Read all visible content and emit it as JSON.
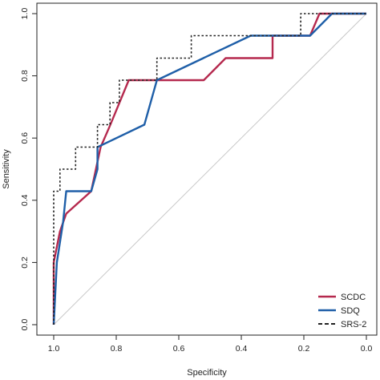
{
  "chart_data": {
    "type": "line",
    "xlabel": "Specificity",
    "ylabel": "Sensitivity",
    "xlim": [
      1.0,
      0.0
    ],
    "ylim": [
      0.0,
      1.0
    ],
    "x_reversed": true,
    "x_ticks": [
      "1.0",
      "0.8",
      "0.6",
      "0.4",
      "0.2",
      "0.0"
    ],
    "x_tick_values": [
      1.0,
      0.8,
      0.6,
      0.4,
      0.2,
      0.0
    ],
    "y_ticks": [
      "0.0",
      "0.2",
      "0.4",
      "0.6",
      "0.8",
      "1.0"
    ],
    "y_tick_values": [
      0.0,
      0.2,
      0.4,
      0.6,
      0.8,
      1.0
    ],
    "grid": false,
    "reference_line": {
      "from": [
        1.0,
        0.0
      ],
      "to": [
        0.0,
        1.0
      ],
      "color": "#c8c8c8"
    },
    "legend_position": "bottom-right",
    "series": [
      {
        "name": "SCDC",
        "color": "#b5294e",
        "style": "solid",
        "points": [
          [
            1.0,
            0.0
          ],
          [
            1.0,
            0.2
          ],
          [
            0.98,
            0.3
          ],
          [
            0.96,
            0.357
          ],
          [
            0.88,
            0.429
          ],
          [
            0.85,
            0.571
          ],
          [
            0.82,
            0.64
          ],
          [
            0.76,
            0.786
          ],
          [
            0.52,
            0.786
          ],
          [
            0.45,
            0.857
          ],
          [
            0.3,
            0.857
          ],
          [
            0.3,
            0.929
          ],
          [
            0.18,
            0.929
          ],
          [
            0.15,
            1.0
          ],
          [
            0.0,
            1.0
          ]
        ]
      },
      {
        "name": "SDQ",
        "color": "#1f5fa8",
        "style": "solid",
        "points": [
          [
            1.0,
            0.0
          ],
          [
            0.99,
            0.2
          ],
          [
            0.97,
            0.33
          ],
          [
            0.96,
            0.429
          ],
          [
            0.88,
            0.429
          ],
          [
            0.86,
            0.5
          ],
          [
            0.86,
            0.571
          ],
          [
            0.71,
            0.643
          ],
          [
            0.67,
            0.786
          ],
          [
            0.37,
            0.929
          ],
          [
            0.18,
            0.929
          ],
          [
            0.11,
            1.0
          ],
          [
            0.0,
            1.0
          ]
        ]
      },
      {
        "name": "SRS-2",
        "color": "#222222",
        "style": "dotted",
        "points": [
          [
            1.0,
            0.0
          ],
          [
            1.0,
            0.429
          ],
          [
            0.98,
            0.429
          ],
          [
            0.98,
            0.5
          ],
          [
            0.93,
            0.5
          ],
          [
            0.93,
            0.571
          ],
          [
            0.86,
            0.571
          ],
          [
            0.86,
            0.643
          ],
          [
            0.82,
            0.643
          ],
          [
            0.82,
            0.714
          ],
          [
            0.79,
            0.714
          ],
          [
            0.79,
            0.786
          ],
          [
            0.67,
            0.786
          ],
          [
            0.67,
            0.857
          ],
          [
            0.56,
            0.857
          ],
          [
            0.56,
            0.929
          ],
          [
            0.21,
            0.929
          ],
          [
            0.21,
            1.0
          ],
          [
            0.0,
            1.0
          ]
        ]
      }
    ]
  }
}
